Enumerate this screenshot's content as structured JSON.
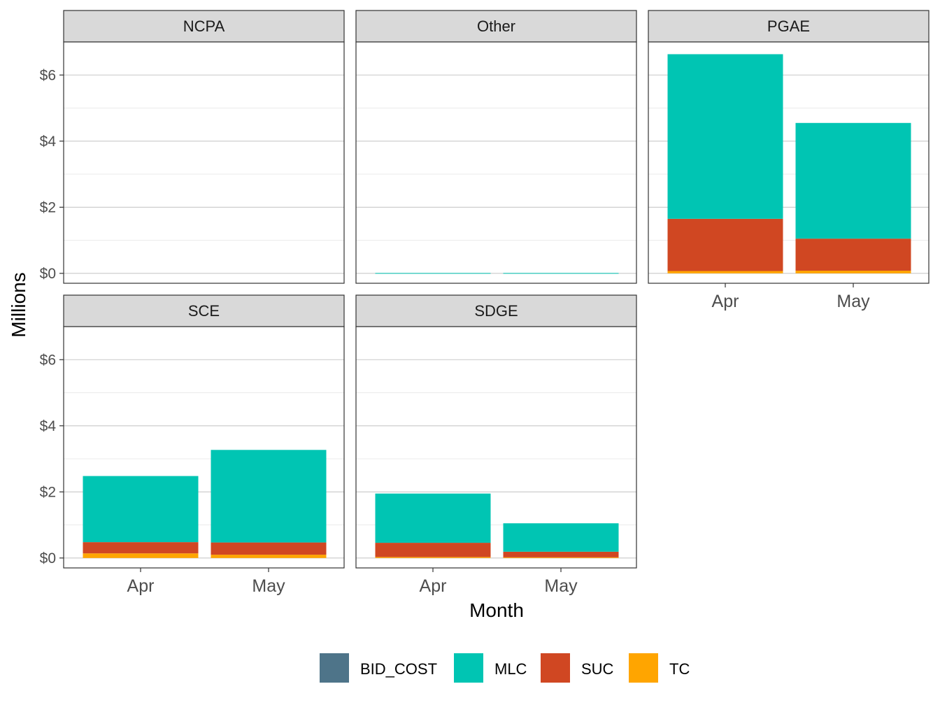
{
  "chart_data": {
    "type": "bar",
    "stacked": true,
    "facets": [
      "NCPA",
      "Other",
      "PGAE",
      "SCE",
      "SDGE"
    ],
    "categories": [
      "Apr",
      "May"
    ],
    "xlabel": "Month",
    "ylabel": "Millions",
    "y_ticks": [
      "$0",
      "$2",
      "$4",
      "$6"
    ],
    "y_tick_values": [
      0,
      2,
      4,
      6
    ],
    "ylim": [
      -0.3,
      7.0
    ],
    "legend_position": "bottom",
    "series": [
      {
        "name": "BID_COST",
        "color": "#4E7489"
      },
      {
        "name": "MLC",
        "color": "#00C5B3"
      },
      {
        "name": "SUC",
        "color": "#D04722"
      },
      {
        "name": "TC",
        "color": "#FFA500"
      }
    ],
    "values": {
      "NCPA": {
        "Apr": {
          "BID_COST": 0,
          "MLC": 0,
          "SUC": 0,
          "TC": 0
        },
        "May": {
          "BID_COST": 0,
          "MLC": 0,
          "SUC": 0,
          "TC": 0
        }
      },
      "Other": {
        "Apr": {
          "BID_COST": 0,
          "MLC": 0.01,
          "SUC": 0,
          "TC": 0
        },
        "May": {
          "BID_COST": 0,
          "MLC": 0.01,
          "SUC": 0,
          "TC": 0
        }
      },
      "PGAE": {
        "Apr": {
          "BID_COST": 0,
          "MLC": 4.98,
          "SUC": 1.58,
          "TC": 0.07
        },
        "May": {
          "BID_COST": 0,
          "MLC": 3.5,
          "SUC": 0.97,
          "TC": 0.08
        }
      },
      "SCE": {
        "Apr": {
          "BID_COST": 0,
          "MLC": 2.0,
          "SUC": 0.34,
          "TC": 0.14
        },
        "May": {
          "BID_COST": 0,
          "MLC": 2.8,
          "SUC": 0.37,
          "TC": 0.1
        }
      },
      "SDGE": {
        "Apr": {
          "BID_COST": 0,
          "MLC": 1.49,
          "SUC": 0.43,
          "TC": 0.03
        },
        "May": {
          "BID_COST": 0,
          "MLC": 0.86,
          "SUC": 0.17,
          "TC": 0.02
        }
      }
    }
  }
}
